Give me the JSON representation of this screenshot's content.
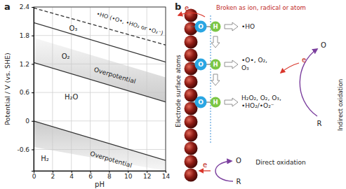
{
  "panels": [
    "a",
    "b"
  ],
  "chart_data": {
    "type": "line",
    "x_label": "pH",
    "y_label": "Potential / V (vs. SHE)",
    "xlim": [
      0,
      14
    ],
    "xticks": [
      0,
      2,
      4,
      6,
      8,
      10,
      12,
      14
    ],
    "ylim": [
      -1.05,
      2.4
    ],
    "yticks": [
      -0.6,
      0,
      0.6,
      1.2,
      1.8,
      2.4
    ],
    "grid": true,
    "x": [
      0,
      14
    ],
    "series": [
      {
        "color": "#333333",
        "line_style": "dashed",
        "values": [
          2.38,
          1.6
        ]
      },
      {
        "color": "#333333",
        "line_style": "solid",
        "values": [
          2.07,
          1.24
        ]
      },
      {
        "color": "#333333",
        "line_style": "solid",
        "values": [
          1.23,
          0.4
        ]
      },
      {
        "color": "#333333",
        "line_style": "solid",
        "values": [
          0,
          -0.83
        ]
      }
    ],
    "bands": [
      {
        "color": "#c8c8c8",
        "lower": [
          1.23,
          0.4
        ],
        "upper": [
          1.75,
          0.92
        ]
      },
      {
        "color": "#c8c8c8",
        "lower": [
          -0.55,
          -1.05
        ],
        "upper": [
          0,
          -0.83
        ]
      }
    ],
    "annotations": [
      {
        "text": "•HO (•O•, •HO₂ or •O₂⁻)",
        "x": 10.2,
        "y": 2.05
      },
      {
        "text": "O₃",
        "x": 4.2,
        "y": 1.95
      },
      {
        "text": "O₂",
        "x": 3.4,
        "y": 1.35
      },
      {
        "text": "H₂O",
        "x": 4,
        "y": 0.5
      },
      {
        "text": "H₂",
        "x": 1.2,
        "y": -0.8
      },
      {
        "text": "Overpotential",
        "x": 8.6,
        "y": 0.95
      },
      {
        "text": "Overpotential",
        "x": 8.2,
        "y": -0.82
      }
    ]
  },
  "diagram": {
    "electrode_label": "Electrode surface atoms",
    "top_text": "Broken as ion, radical or atom",
    "oxygen": "O",
    "hydrogen": "H",
    "electron": "e",
    "products": [
      [
        "•HO"
      ],
      [
        "•O•, O₂,",
        "O₃"
      ],
      [
        "H₂O₂, O₂, O₃,",
        "•HO₂/•O₂⁻"
      ]
    ],
    "indirect": {
      "label": "Indirect oxidation",
      "oxidized": "O",
      "reduced": "R"
    },
    "direct": {
      "label": "Direct oxidation",
      "oxidized": "O",
      "reduced": "R"
    }
  }
}
